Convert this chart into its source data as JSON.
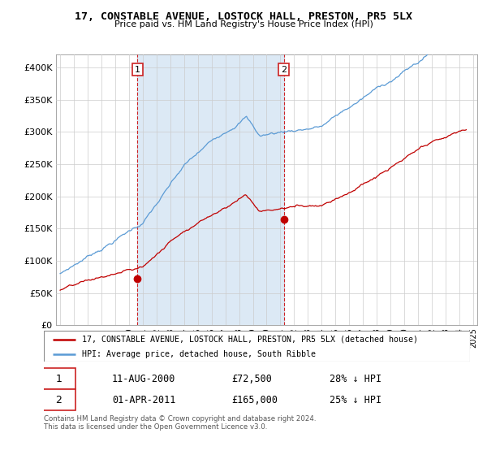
{
  "title": "17, CONSTABLE AVENUE, LOSTOCK HALL, PRESTON, PR5 5LX",
  "subtitle": "Price paid vs. HM Land Registry's House Price Index (HPI)",
  "ylim": [
    0,
    420000
  ],
  "yticks": [
    0,
    50000,
    100000,
    150000,
    200000,
    250000,
    300000,
    350000,
    400000
  ],
  "ytick_labels": [
    "£0",
    "£50K",
    "£100K",
    "£150K",
    "£200K",
    "£250K",
    "£300K",
    "£350K",
    "£400K"
  ],
  "hpi_color": "#5b9bd5",
  "price_color": "#c00000",
  "marker1_x": 2000.62,
  "marker1_y": 72500,
  "marker2_x": 2011.25,
  "marker2_y": 165000,
  "shade_color": "#dce9f5",
  "legend_house": "17, CONSTABLE AVENUE, LOSTOCK HALL, PRESTON, PR5 5LX (detached house)",
  "legend_hpi": "HPI: Average price, detached house, South Ribble",
  "annotation1_label": "1",
  "annotation1_date": "11-AUG-2000",
  "annotation1_price": "£72,500",
  "annotation1_hpi": "28% ↓ HPI",
  "annotation2_label": "2",
  "annotation2_date": "01-APR-2011",
  "annotation2_price": "£165,000",
  "annotation2_hpi": "25% ↓ HPI",
  "footer": "Contains HM Land Registry data © Crown copyright and database right 2024.\nThis data is licensed under the Open Government Licence v3.0.",
  "bg_color": "#ffffff",
  "grid_color": "#cccccc",
  "xlim_left": 1994.7,
  "xlim_right": 2025.3
}
